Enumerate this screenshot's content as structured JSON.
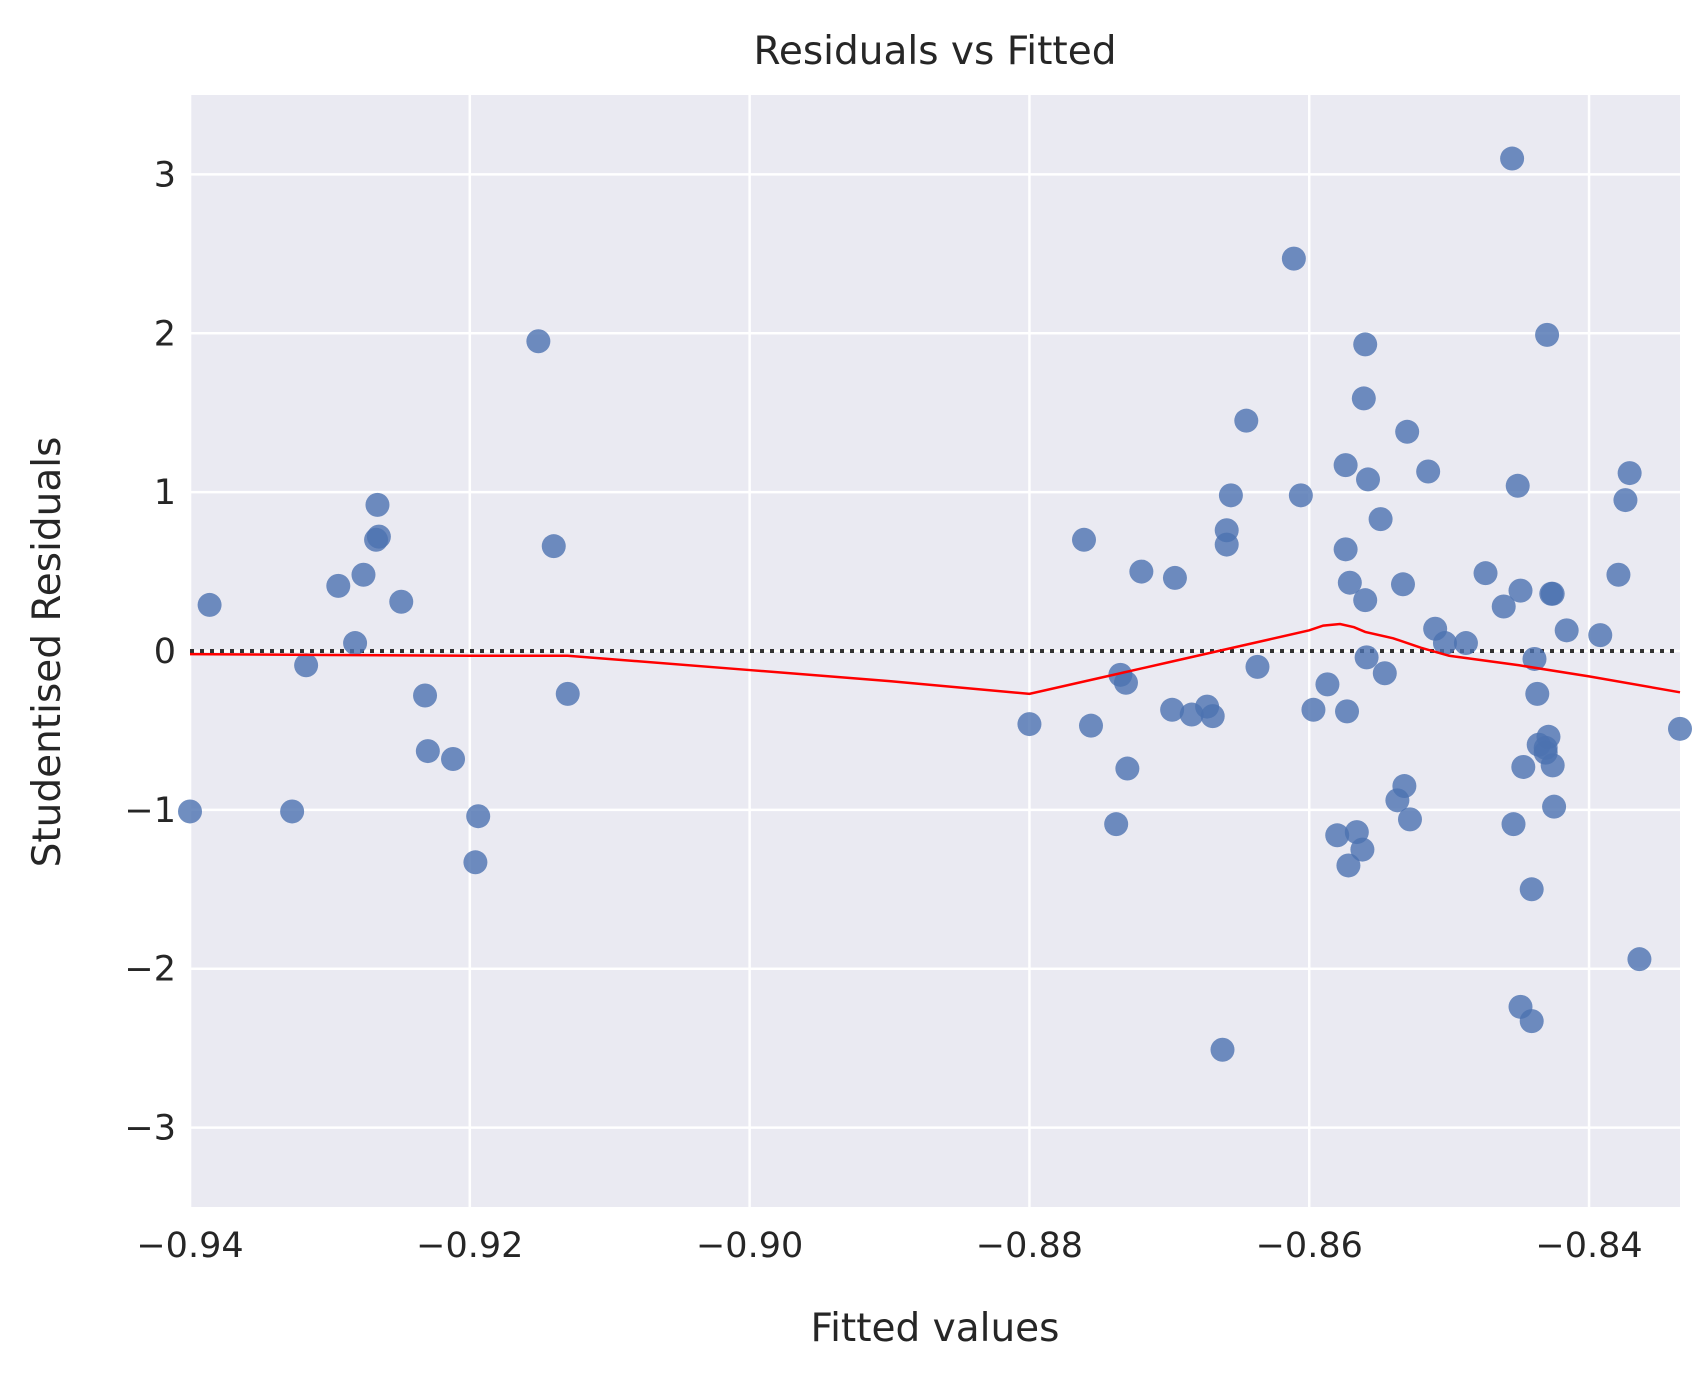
{
  "chart_data": {
    "type": "scatter",
    "title": "Residuals vs Fitted",
    "xlabel": "Fitted values",
    "ylabel": "Studentised Residuals",
    "xlim": [
      -0.94,
      -0.8335
    ],
    "ylim": [
      -3.5,
      3.5
    ],
    "xticks": [
      -0.94,
      -0.92,
      -0.9,
      -0.88,
      -0.86,
      -0.84
    ],
    "xtick_labels": [
      "−0.94",
      "−0.92",
      "−0.90",
      "−0.88",
      "−0.86",
      "−0.84"
    ],
    "yticks": [
      -3,
      -2,
      -1,
      0,
      1,
      2,
      3
    ],
    "ytick_labels": [
      "−3",
      "−2",
      "−1",
      "0",
      "1",
      "2",
      "3"
    ],
    "grid": true,
    "colors": {
      "background": "#eaeaf2",
      "grid": "#ffffff",
      "points": "#4c72b0",
      "lowess": "#ff0000",
      "reference": "#333333"
    },
    "reference_line": {
      "y": 0,
      "style": "dotted"
    },
    "points": [
      {
        "x": -0.94,
        "y": -1.01
      },
      {
        "x": -0.9386,
        "y": 0.29
      },
      {
        "x": -0.9327,
        "y": -1.01
      },
      {
        "x": -0.9317,
        "y": -0.09
      },
      {
        "x": -0.9294,
        "y": 0.41
      },
      {
        "x": -0.9282,
        "y": 0.05
      },
      {
        "x": -0.9276,
        "y": 0.48
      },
      {
        "x": -0.9266,
        "y": 0.92
      },
      {
        "x": -0.9267,
        "y": 0.7
      },
      {
        "x": -0.9265,
        "y": 0.72
      },
      {
        "x": -0.9249,
        "y": 0.31
      },
      {
        "x": -0.9232,
        "y": -0.28
      },
      {
        "x": -0.923,
        "y": -0.63
      },
      {
        "x": -0.9212,
        "y": -0.68
      },
      {
        "x": -0.9196,
        "y": -1.33
      },
      {
        "x": -0.9194,
        "y": -1.04
      },
      {
        "x": -0.9151,
        "y": 1.95
      },
      {
        "x": -0.914,
        "y": 0.66
      },
      {
        "x": -0.913,
        "y": -0.27
      },
      {
        "x": -0.88,
        "y": -0.46
      },
      {
        "x": -0.8761,
        "y": 0.7
      },
      {
        "x": -0.8756,
        "y": -0.47
      },
      {
        "x": -0.8738,
        "y": -1.09
      },
      {
        "x": -0.8735,
        "y": -0.15
      },
      {
        "x": -0.8731,
        "y": -0.2
      },
      {
        "x": -0.873,
        "y": -0.74
      },
      {
        "x": -0.872,
        "y": 0.5
      },
      {
        "x": -0.8698,
        "y": -0.37
      },
      {
        "x": -0.8696,
        "y": 0.46
      },
      {
        "x": -0.8684,
        "y": -0.4
      },
      {
        "x": -0.8673,
        "y": -0.35
      },
      {
        "x": -0.8669,
        "y": -0.41
      },
      {
        "x": -0.8662,
        "y": -2.51
      },
      {
        "x": -0.8659,
        "y": 0.67
      },
      {
        "x": -0.8659,
        "y": 0.76
      },
      {
        "x": -0.8656,
        "y": 0.98
      },
      {
        "x": -0.8645,
        "y": 1.45
      },
      {
        "x": -0.8637,
        "y": -0.1
      },
      {
        "x": -0.8611,
        "y": 2.47
      },
      {
        "x": -0.8606,
        "y": 0.98
      },
      {
        "x": -0.8597,
        "y": -0.37
      },
      {
        "x": -0.8587,
        "y": -0.21
      },
      {
        "x": -0.858,
        "y": -1.16
      },
      {
        "x": -0.8574,
        "y": 0.64
      },
      {
        "x": -0.8574,
        "y": 1.17
      },
      {
        "x": -0.8573,
        "y": -0.38
      },
      {
        "x": -0.8572,
        "y": -1.35
      },
      {
        "x": -0.8571,
        "y": 0.43
      },
      {
        "x": -0.8566,
        "y": -1.14
      },
      {
        "x": -0.8562,
        "y": -1.25
      },
      {
        "x": -0.856,
        "y": 1.93
      },
      {
        "x": -0.8561,
        "y": 1.59
      },
      {
        "x": -0.856,
        "y": 0.32
      },
      {
        "x": -0.8559,
        "y": -0.04
      },
      {
        "x": -0.8558,
        "y": 1.08
      },
      {
        "x": -0.8549,
        "y": 0.83
      },
      {
        "x": -0.8546,
        "y": -0.14
      },
      {
        "x": -0.8537,
        "y": -0.94
      },
      {
        "x": -0.8533,
        "y": 0.42
      },
      {
        "x": -0.8532,
        "y": -0.85
      },
      {
        "x": -0.853,
        "y": 1.38
      },
      {
        "x": -0.8528,
        "y": -1.06
      },
      {
        "x": -0.8515,
        "y": 1.13
      },
      {
        "x": -0.851,
        "y": 0.14
      },
      {
        "x": -0.8503,
        "y": 0.05
      },
      {
        "x": -0.8488,
        "y": 0.05
      },
      {
        "x": -0.8474,
        "y": 0.49
      },
      {
        "x": -0.8461,
        "y": 0.28
      },
      {
        "x": -0.8455,
        "y": 3.1
      },
      {
        "x": -0.8454,
        "y": -1.09
      },
      {
        "x": -0.8451,
        "y": 1.04
      },
      {
        "x": -0.8449,
        "y": 0.38
      },
      {
        "x": -0.8449,
        "y": -2.24
      },
      {
        "x": -0.8447,
        "y": -0.73
      },
      {
        "x": -0.8441,
        "y": -2.33
      },
      {
        "x": -0.8441,
        "y": -1.5
      },
      {
        "x": -0.8439,
        "y": -0.05
      },
      {
        "x": -0.8437,
        "y": -0.27
      },
      {
        "x": -0.8436,
        "y": -0.59
      },
      {
        "x": -0.8431,
        "y": -0.61
      },
      {
        "x": -0.8431,
        "y": -0.64
      },
      {
        "x": -0.843,
        "y": 1.99
      },
      {
        "x": -0.8429,
        "y": -0.54
      },
      {
        "x": -0.8427,
        "y": 0.36
      },
      {
        "x": -0.8426,
        "y": -0.72
      },
      {
        "x": -0.8425,
        "y": -0.98
      },
      {
        "x": -0.8426,
        "y": 0.36
      },
      {
        "x": -0.8416,
        "y": 0.13
      },
      {
        "x": -0.8392,
        "y": 0.1
      },
      {
        "x": -0.8379,
        "y": 0.48
      },
      {
        "x": -0.8374,
        "y": 0.95
      },
      {
        "x": -0.8371,
        "y": 1.12
      },
      {
        "x": -0.8364,
        "y": -1.94
      },
      {
        "x": -0.8335,
        "y": -0.49
      }
    ],
    "lowess": [
      {
        "x": -0.94,
        "y": -0.02
      },
      {
        "x": -0.93,
        "y": -0.025
      },
      {
        "x": -0.92,
        "y": -0.03
      },
      {
        "x": -0.913,
        "y": -0.03
      },
      {
        "x": -0.9,
        "y": -0.12
      },
      {
        "x": -0.89,
        "y": -0.19
      },
      {
        "x": -0.88,
        "y": -0.27
      },
      {
        "x": -0.875,
        "y": -0.17
      },
      {
        "x": -0.87,
        "y": -0.07
      },
      {
        "x": -0.865,
        "y": 0.03
      },
      {
        "x": -0.86,
        "y": 0.13
      },
      {
        "x": -0.859,
        "y": 0.16
      },
      {
        "x": -0.8578,
        "y": 0.17
      },
      {
        "x": -0.8568,
        "y": 0.15
      },
      {
        "x": -0.856,
        "y": 0.12
      },
      {
        "x": -0.854,
        "y": 0.08
      },
      {
        "x": -0.852,
        "y": 0.02
      },
      {
        "x": -0.85,
        "y": -0.03
      },
      {
        "x": -0.845,
        "y": -0.09
      },
      {
        "x": -0.84,
        "y": -0.16
      },
      {
        "x": -0.8335,
        "y": -0.26
      }
    ]
  }
}
